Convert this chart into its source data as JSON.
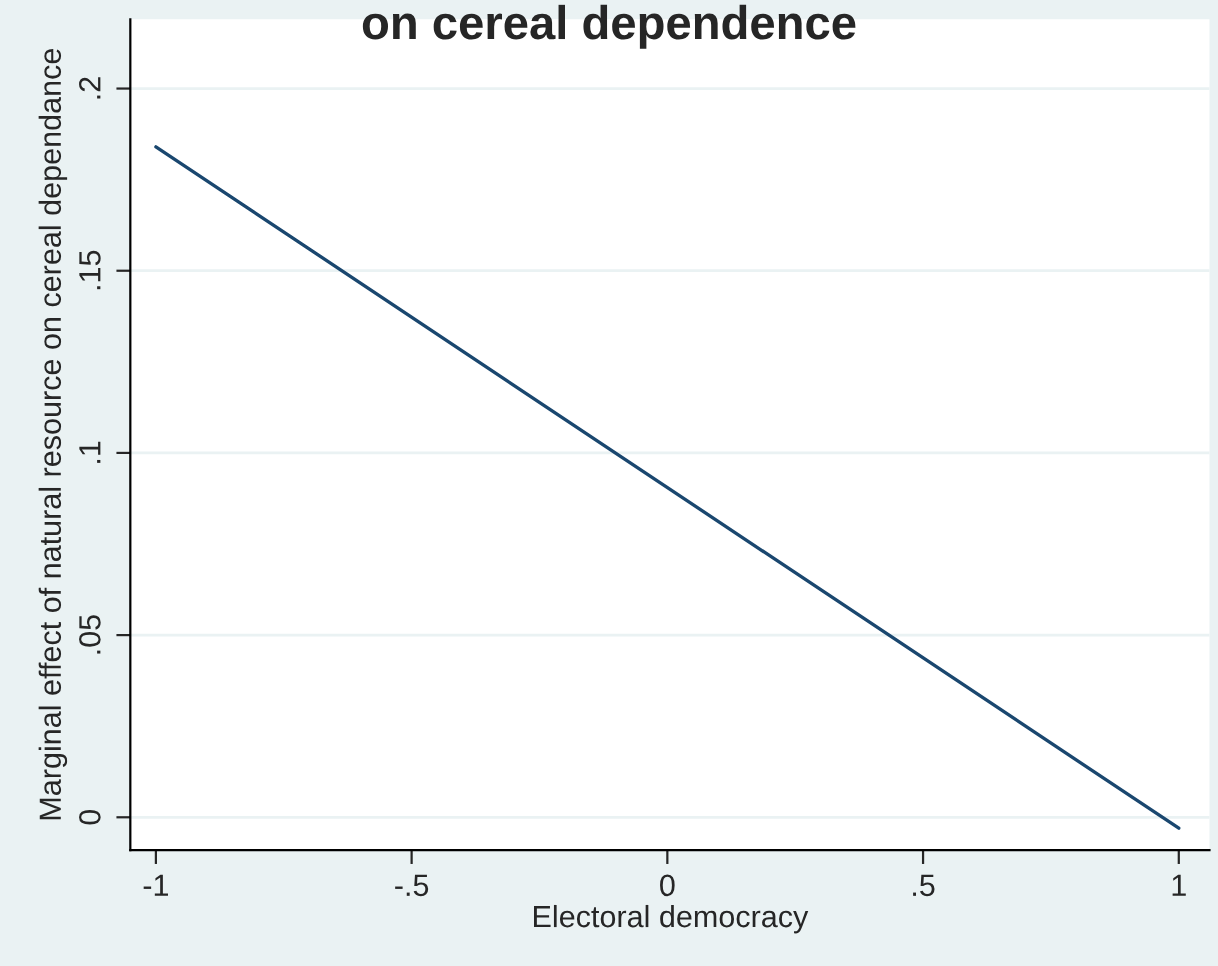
{
  "chart_data": {
    "type": "line",
    "title": "on cereal dependence",
    "xlabel": "Electoral democracy",
    "ylabel": "Marginal effect of natural resource on cereal dependance",
    "x": [
      -1,
      1
    ],
    "series": [
      {
        "color": "#1a476f",
        "values": [
          0.184,
          -0.003
        ]
      }
    ],
    "xlim": [
      -1.05,
      1.06
    ],
    "ylim": [
      -0.009,
      0.219
    ],
    "xticks": [
      {
        "value": -1,
        "label": "-1"
      },
      {
        "value": -0.5,
        "label": "-.5"
      },
      {
        "value": 0,
        "label": "0"
      },
      {
        "value": 0.5,
        "label": ".5"
      },
      {
        "value": 1,
        "label": "1"
      }
    ],
    "yticks": [
      {
        "value": 0,
        "label": "0"
      },
      {
        "value": 0.05,
        "label": ".05"
      },
      {
        "value": 0.1,
        "label": ".1"
      },
      {
        "value": 0.15,
        "label": ".15"
      },
      {
        "value": 0.2,
        "label": ".2"
      }
    ],
    "grid": "y",
    "marker": "none",
    "line_style": "solid"
  }
}
